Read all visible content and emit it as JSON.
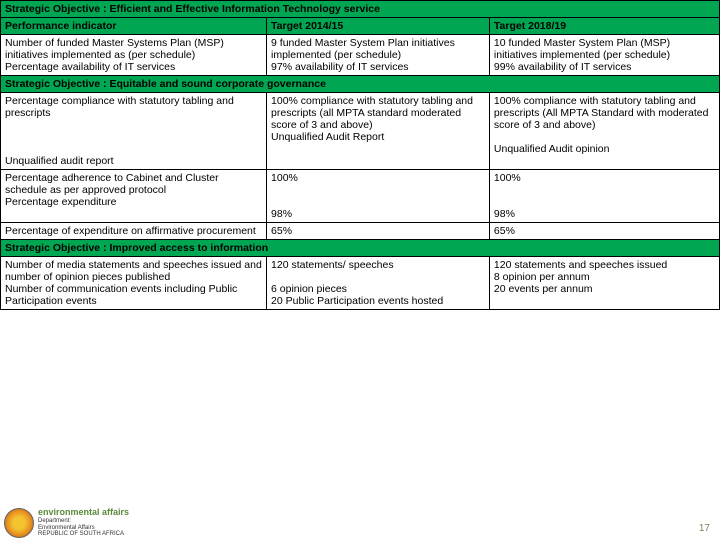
{
  "colors": {
    "header_bg": "#00a651",
    "border": "#000000",
    "page_bg": "#ffffff"
  },
  "objectives": {
    "obj1": "Strategic Objective : Efficient and Effective Information Technology service",
    "obj2": "Strategic Objective : Equitable and sound corporate governance",
    "obj3": "Strategic Objective : Improved access to information"
  },
  "headers": {
    "indicator": "Performance indicator",
    "target1": "Target 2014/15",
    "target2": "Target 2018/19"
  },
  "rows": {
    "r1": {
      "ind": "Number of funded Master Systems Plan (MSP) initiatives implemented  as (per schedule)\nPercentage availability of IT services",
      "t1": "9 funded Master System Plan initiatives implemented (per schedule)\n97% availability of IT services",
      "t2": "10 funded Master System Plan (MSP) initiatives implemented (per schedule)\n99% availability of IT services"
    },
    "r2": {
      "ind": "Percentage compliance with statutory tabling and prescripts\n\n\n\nUnqualified audit report",
      "t1": "100% compliance with statutory tabling and prescripts (all MPTA standard moderated score of 3 and above)\nUnqualified Audit Report",
      "t2": "100% compliance with statutory tabling and prescripts (All MPTA Standard with moderated score of 3 and above)\n\nUnqualified Audit opinion"
    },
    "r3": {
      "ind": "Percentage adherence to Cabinet and Cluster schedule as per approved protocol\nPercentage expenditure",
      "t1": "100%\n\n\n98%",
      "t2": "100%\n\n\n98%"
    },
    "r4": {
      "ind": "Percentage of expenditure on affirmative procurement",
      "t1": "65%",
      "t2": "65%"
    },
    "r5": {
      "ind": "Number of media statements and speeches issued and number of  opinion pieces published\nNumber of communication events       including Public Participation         events",
      "t1": "120  statements/ speeches\n\n6 opinion pieces\n20 Public Participation events hosted",
      "t2": "120 statements and speeches issued\n8 opinion per annum\n20 events per annum"
    }
  },
  "logo": {
    "line1": "environmental affairs",
    "line2": "Department:",
    "line3": "Environmental Affairs",
    "line4": "REPUBLIC OF SOUTH AFRICA"
  },
  "pagenum": "17"
}
